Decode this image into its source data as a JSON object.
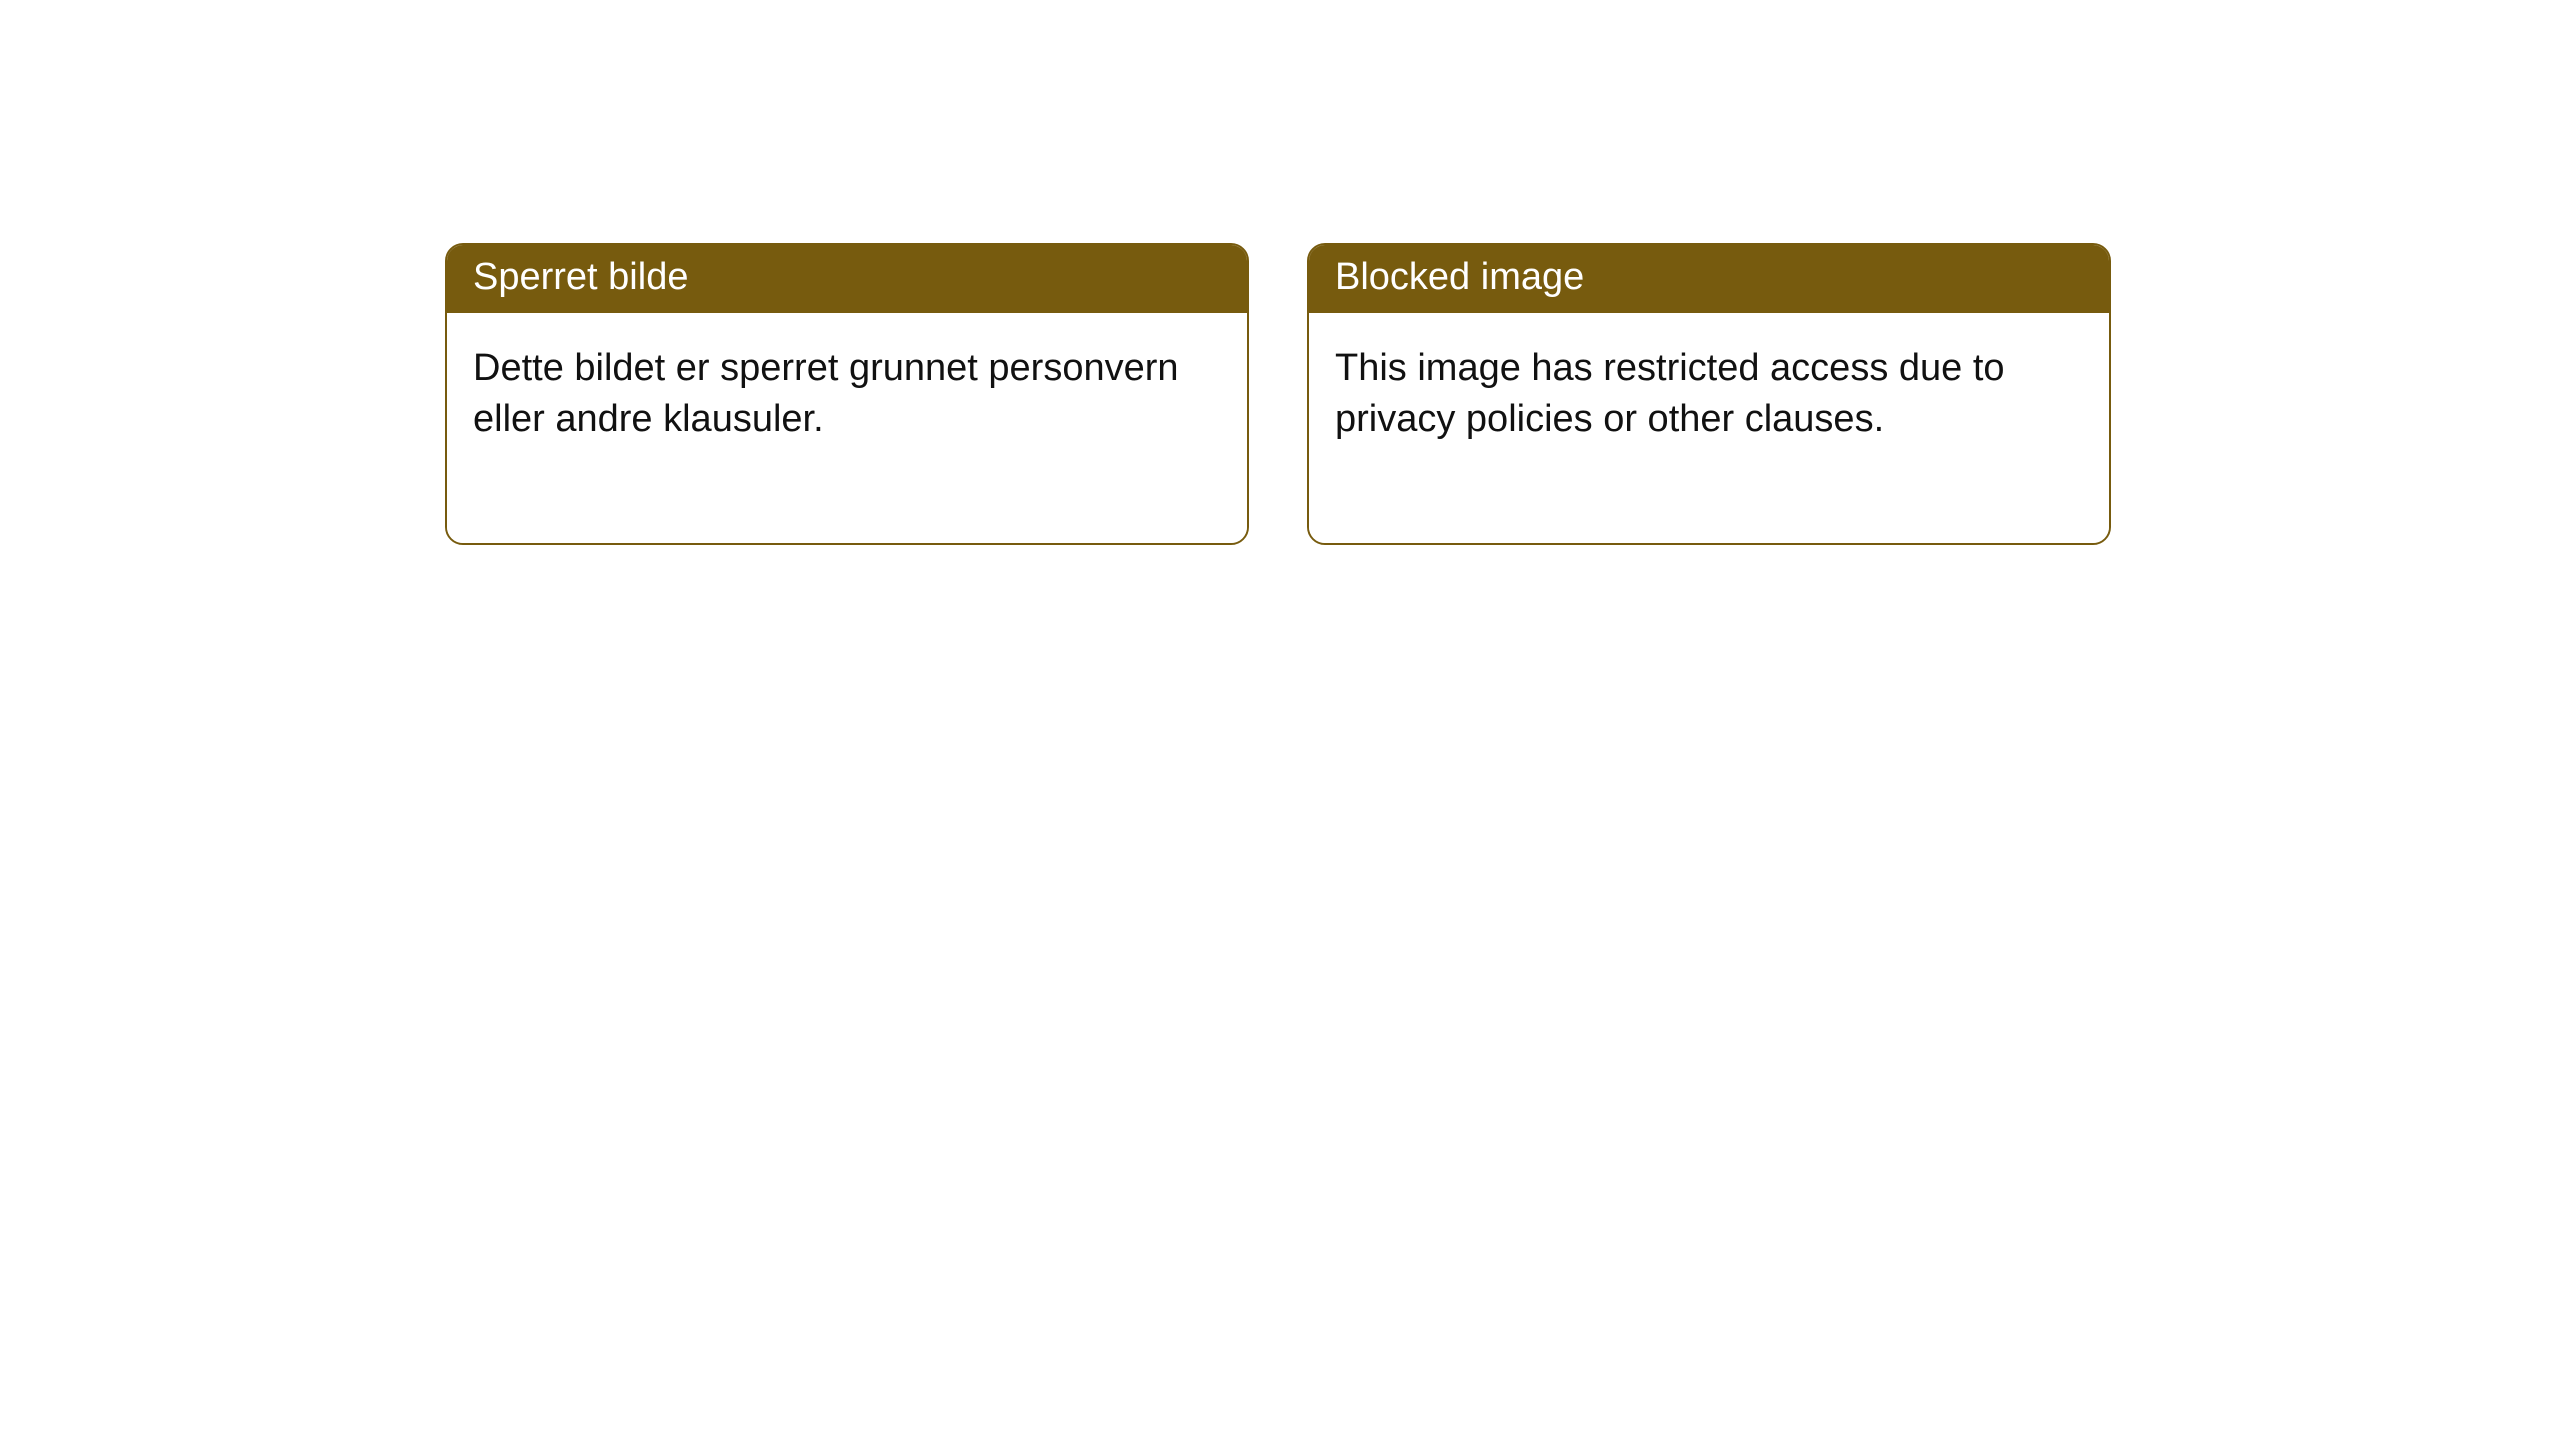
{
  "colors": {
    "header_bg": "#775b0e",
    "border": "#775b0e",
    "header_text": "#ffffff",
    "body_text": "#111111",
    "body_bg": "#ffffff"
  },
  "cards": [
    {
      "title": "Sperret bilde",
      "body": "Dette bildet er sperret grunnet personvern eller andre klausuler."
    },
    {
      "title": "Blocked image",
      "body": "This image has restricted access due to privacy policies or other clauses."
    }
  ]
}
